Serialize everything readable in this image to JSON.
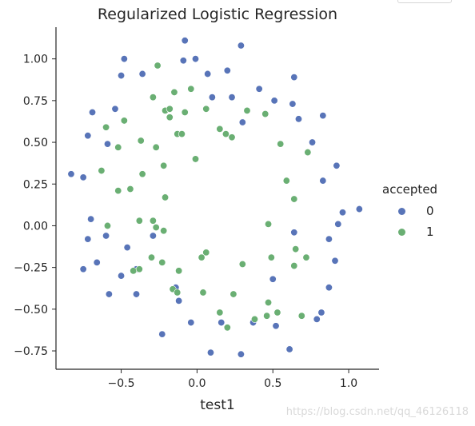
{
  "chart_data": {
    "type": "scatter",
    "title": "Regularized Logistic Regression",
    "xlabel": "test1",
    "ylabel": "",
    "xlim": [
      -0.93,
      1.2
    ],
    "ylim": [
      -0.86,
      1.19
    ],
    "xticks": [
      "−0.5",
      "0.0",
      "0.5",
      "1.0"
    ],
    "xtick_values": [
      -0.5,
      0.0,
      0.5,
      1.0
    ],
    "yticks": [
      "1.00",
      "0.75",
      "0.50",
      "0.25",
      "0.00",
      "−0.25",
      "−0.50",
      "−0.75"
    ],
    "ytick_values": [
      1.0,
      0.75,
      0.5,
      0.25,
      0.0,
      -0.25,
      -0.5,
      -0.75
    ],
    "grid": false,
    "legend": {
      "title": "accepted",
      "placement": "right"
    },
    "series": [
      {
        "name": "0",
        "color": "#5874b8",
        "points": [
          [
            -0.08,
            1.11
          ],
          [
            0.29,
            1.08
          ],
          [
            -0.48,
            1.0
          ],
          [
            -0.09,
            0.99
          ],
          [
            -0.01,
            1.0
          ],
          [
            -0.5,
            0.9
          ],
          [
            -0.36,
            0.91
          ],
          [
            0.07,
            0.91
          ],
          [
            0.2,
            0.93
          ],
          [
            0.41,
            0.82
          ],
          [
            0.1,
            0.77
          ],
          [
            0.23,
            0.77
          ],
          [
            0.51,
            0.75
          ],
          [
            0.63,
            0.73
          ],
          [
            0.64,
            0.89
          ],
          [
            -0.69,
            0.68
          ],
          [
            -0.54,
            0.7
          ],
          [
            0.3,
            0.62
          ],
          [
            0.67,
            0.64
          ],
          [
            0.83,
            0.66
          ],
          [
            -0.72,
            0.54
          ],
          [
            -0.59,
            0.49
          ],
          [
            0.76,
            0.5
          ],
          [
            -0.83,
            0.31
          ],
          [
            -0.75,
            0.29
          ],
          [
            0.92,
            0.36
          ],
          [
            0.83,
            0.27
          ],
          [
            0.96,
            0.08
          ],
          [
            1.07,
            0.1
          ],
          [
            -0.7,
            0.04
          ],
          [
            0.93,
            0.01
          ],
          [
            -0.72,
            -0.08
          ],
          [
            -0.6,
            -0.06
          ],
          [
            -0.29,
            -0.06
          ],
          [
            0.64,
            -0.04
          ],
          [
            0.87,
            -0.08
          ],
          [
            -0.46,
            -0.13
          ],
          [
            -0.66,
            -0.22
          ],
          [
            -0.75,
            -0.26
          ],
          [
            0.91,
            -0.21
          ],
          [
            -0.4,
            -0.26
          ],
          [
            -0.5,
            -0.3
          ],
          [
            0.5,
            -0.32
          ],
          [
            -0.58,
            -0.41
          ],
          [
            -0.4,
            -0.41
          ],
          [
            -0.14,
            -0.37
          ],
          [
            -0.12,
            -0.45
          ],
          [
            0.87,
            -0.37
          ],
          [
            0.82,
            -0.52
          ],
          [
            0.79,
            -0.56
          ],
          [
            -0.04,
            -0.58
          ],
          [
            0.16,
            -0.58
          ],
          [
            0.37,
            -0.58
          ],
          [
            0.52,
            -0.6
          ],
          [
            -0.23,
            -0.65
          ],
          [
            0.61,
            -0.74
          ],
          [
            0.09,
            -0.76
          ],
          [
            0.29,
            -0.77
          ]
        ]
      },
      {
        "name": "1",
        "color": "#6aaf73",
        "points": [
          [
            -0.26,
            0.96
          ],
          [
            -0.15,
            0.8
          ],
          [
            -0.04,
            0.82
          ],
          [
            -0.29,
            0.77
          ],
          [
            -0.48,
            0.63
          ],
          [
            -0.21,
            0.69
          ],
          [
            -0.18,
            0.65
          ],
          [
            -0.18,
            0.7
          ],
          [
            -0.08,
            0.68
          ],
          [
            0.06,
            0.7
          ],
          [
            0.33,
            0.69
          ],
          [
            0.45,
            0.67
          ],
          [
            -0.6,
            0.59
          ],
          [
            -0.13,
            0.55
          ],
          [
            -0.1,
            0.55
          ],
          [
            0.15,
            0.58
          ],
          [
            0.19,
            0.55
          ],
          [
            0.23,
            0.53
          ],
          [
            -0.52,
            0.47
          ],
          [
            -0.37,
            0.51
          ],
          [
            -0.27,
            0.47
          ],
          [
            0.55,
            0.49
          ],
          [
            0.73,
            0.44
          ],
          [
            -0.22,
            0.36
          ],
          [
            -0.01,
            0.4
          ],
          [
            -0.63,
            0.33
          ],
          [
            -0.36,
            0.31
          ],
          [
            -0.52,
            0.21
          ],
          [
            -0.44,
            0.22
          ],
          [
            -0.21,
            0.17
          ],
          [
            0.59,
            0.27
          ],
          [
            0.64,
            0.16
          ],
          [
            -0.38,
            0.03
          ],
          [
            -0.29,
            0.03
          ],
          [
            -0.59,
            0.0
          ],
          [
            -0.27,
            -0.01
          ],
          [
            -0.22,
            -0.03
          ],
          [
            0.47,
            0.01
          ],
          [
            0.65,
            -0.14
          ],
          [
            0.72,
            -0.19
          ],
          [
            -0.3,
            -0.19
          ],
          [
            -0.23,
            -0.22
          ],
          [
            0.06,
            -0.16
          ],
          [
            0.03,
            -0.19
          ],
          [
            0.3,
            -0.23
          ],
          [
            0.49,
            -0.19
          ],
          [
            0.64,
            -0.24
          ],
          [
            -0.42,
            -0.27
          ],
          [
            -0.38,
            -0.26
          ],
          [
            -0.12,
            -0.27
          ],
          [
            -0.16,
            -0.38
          ],
          [
            -0.13,
            -0.4
          ],
          [
            0.04,
            -0.4
          ],
          [
            0.24,
            -0.41
          ],
          [
            0.47,
            -0.46
          ],
          [
            0.15,
            -0.52
          ],
          [
            0.38,
            -0.56
          ],
          [
            0.46,
            -0.54
          ],
          [
            0.53,
            -0.52
          ],
          [
            0.69,
            -0.54
          ],
          [
            0.2,
            -0.61
          ]
        ]
      }
    ]
  },
  "watermark": "https://blog.csdn.net/qq_46126118"
}
